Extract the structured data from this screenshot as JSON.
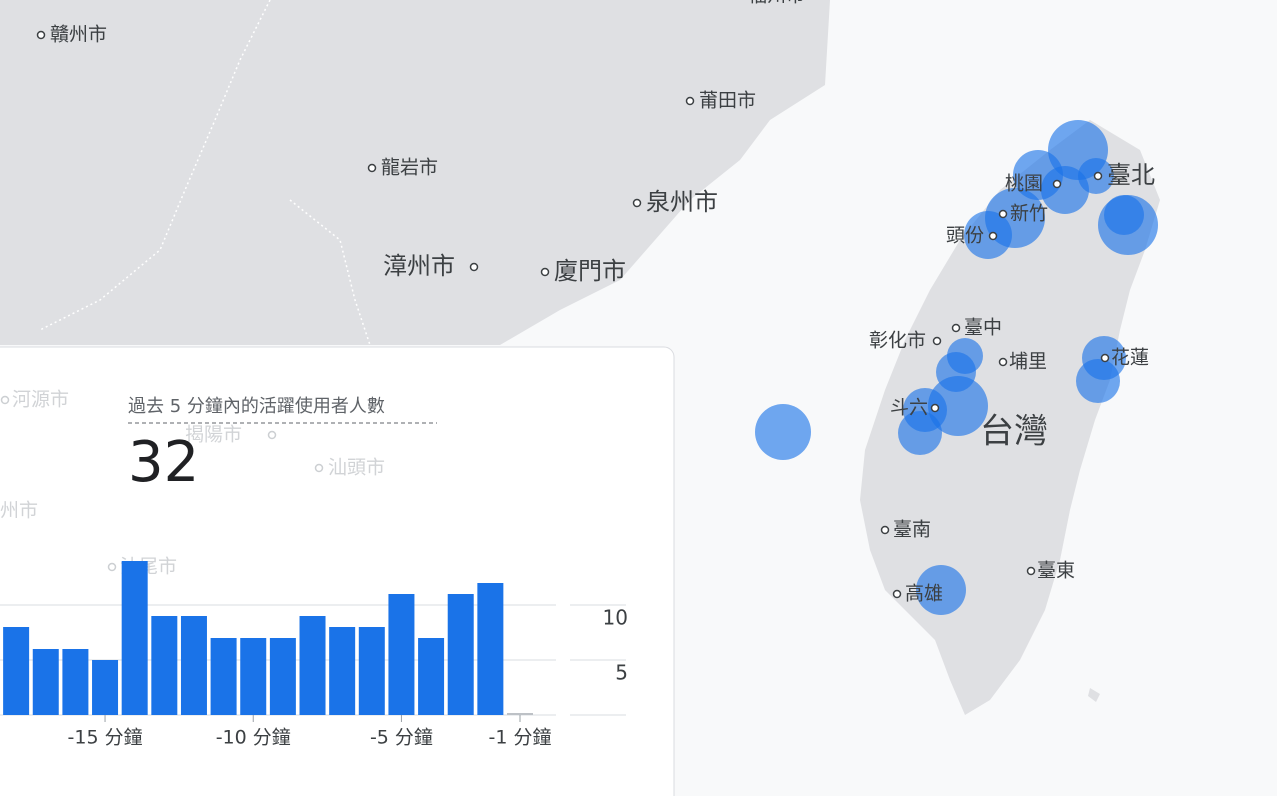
{
  "map": {
    "labels": [
      "福州市",
      "贛州市",
      "莆田市",
      "龍岩市",
      "泉州市",
      "漳州市",
      "廈門市",
      "臺北",
      "桃園",
      "新竹",
      "頭份",
      "彰化市",
      "臺中",
      "埔里",
      "花蓮",
      "斗六",
      "台灣",
      "臺南",
      "臺東",
      "高雄",
      "河源市",
      "揭陽市",
      "汕頭市",
      "州市",
      "汕尾市"
    ]
  },
  "card": {
    "title": "過去 5 分鐘內的活躍使用者人數",
    "value": 32
  },
  "chart_data": {
    "type": "bar",
    "categories": [
      null,
      null,
      null,
      "-15 分鐘",
      null,
      null,
      null,
      null,
      "-10 分鐘",
      null,
      null,
      null,
      null,
      "-5 分鐘",
      null,
      null,
      null,
      "-1 分鐘"
    ],
    "values": [
      8,
      6,
      6,
      5,
      14,
      9,
      9,
      7,
      7,
      7,
      9,
      8,
      8,
      11,
      7,
      11,
      12,
      0
    ],
    "color": "#1a73e8",
    "ylim": [
      0,
      15
    ],
    "yticks": [
      5,
      10
    ],
    "grid": true
  }
}
